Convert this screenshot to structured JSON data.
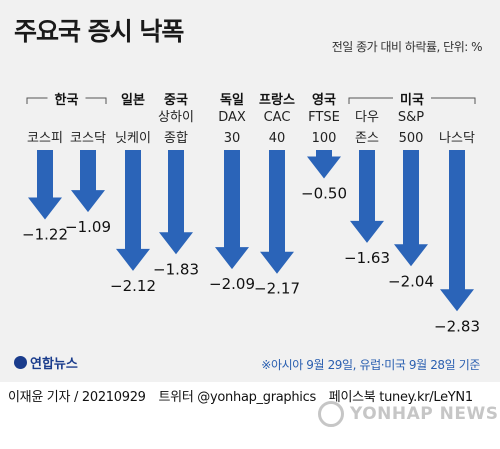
{
  "header": {
    "title": "주요국 증시 낙폭",
    "subtitle": "전일 종가 대비 하락률, 단위: %"
  },
  "chart_data": {
    "type": "bar",
    "title": "주요국 증시 낙폭",
    "unit": "전일 종가 대비 하락률, 단위: %",
    "orientation": "vertical-down-arrows",
    "groups": [
      "한국",
      "일본",
      "중국",
      "독일",
      "프랑스",
      "영국",
      "미국"
    ],
    "categories": [
      [
        "코스피"
      ],
      [
        "코스닥"
      ],
      [
        "닛케이"
      ],
      [
        "상하이",
        "종합"
      ],
      [
        "DAX",
        "30"
      ],
      [
        "CAC",
        "40"
      ],
      [
        "FTSE",
        "100"
      ],
      [
        "다우",
        "존스"
      ],
      [
        "S&P",
        "500"
      ],
      [
        "나스닥"
      ]
    ],
    "category_group": [
      "한국",
      "한국",
      "일본",
      "중국",
      "독일",
      "프랑스",
      "영국",
      "미국",
      "미국",
      "미국"
    ],
    "values": [
      -1.22,
      -1.09,
      -2.12,
      -1.83,
      -2.09,
      -2.17,
      -0.5,
      -1.63,
      -2.04,
      -2.83
    ],
    "value_labels": [
      "−1.22",
      "−1.09",
      "−2.12",
      "−1.83",
      "−2.09",
      "−2.17",
      "−0.50",
      "−1.63",
      "−2.04",
      "−2.83"
    ],
    "bar_color": "#2b64b8",
    "ylim": [
      -3.0,
      0
    ]
  },
  "footer": {
    "logo": "연합뉴스",
    "note": "※아시아 9월 29일, 유럽·미국 9월 28일 기준",
    "credit": "이재윤 기자 / 20210929",
    "twitter": "트위터 @yonhap_graphics",
    "facebook": "페이스북 tuney.kr/LeYN1",
    "watermark": "YONHAP NEWS"
  }
}
